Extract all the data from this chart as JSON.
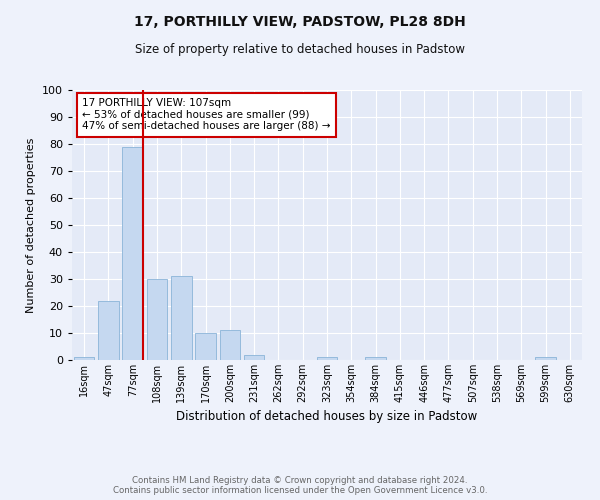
{
  "title1": "17, PORTHILLY VIEW, PADSTOW, PL28 8DH",
  "title2": "Size of property relative to detached houses in Padstow",
  "xlabel": "Distribution of detached houses by size in Padstow",
  "ylabel": "Number of detached properties",
  "bar_labels": [
    "16sqm",
    "47sqm",
    "77sqm",
    "108sqm",
    "139sqm",
    "170sqm",
    "200sqm",
    "231sqm",
    "262sqm",
    "292sqm",
    "323sqm",
    "354sqm",
    "384sqm",
    "415sqm",
    "446sqm",
    "477sqm",
    "507sqm",
    "538sqm",
    "569sqm",
    "599sqm",
    "630sqm"
  ],
  "bar_values": [
    1,
    22,
    79,
    30,
    31,
    10,
    11,
    2,
    0,
    0,
    1,
    0,
    1,
    0,
    0,
    0,
    0,
    0,
    0,
    1,
    0
  ],
  "bar_color": "#c5d8f0",
  "bar_edgecolor": "#8ab4d8",
  "vline_color": "#cc0000",
  "ylim": [
    0,
    100
  ],
  "yticks": [
    0,
    10,
    20,
    30,
    40,
    50,
    60,
    70,
    80,
    90,
    100
  ],
  "annotation_text": "17 PORTHILLY VIEW: 107sqm\n← 53% of detached houses are smaller (99)\n47% of semi-detached houses are larger (88) →",
  "annotation_box_color": "#cc0000",
  "footer_text": "Contains HM Land Registry data © Crown copyright and database right 2024.\nContains public sector information licensed under the Open Government Licence v3.0.",
  "background_color": "#eef2fb",
  "plot_bg_color": "#e4eaf7"
}
